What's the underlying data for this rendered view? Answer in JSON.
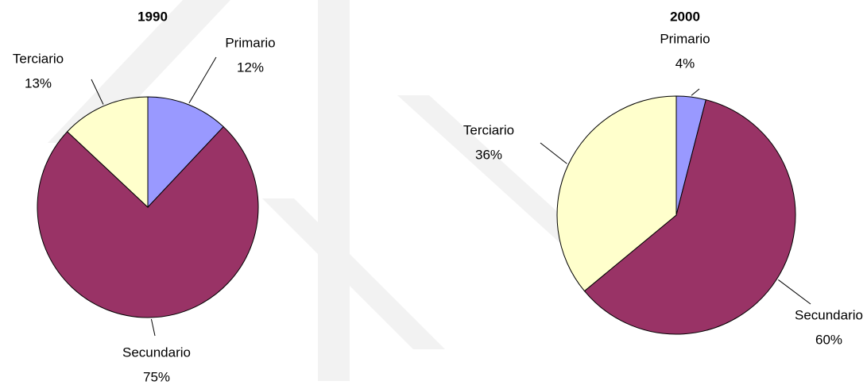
{
  "chart_data": [
    {
      "type": "pie",
      "title": "1990",
      "categories": [
        "Primario",
        "Secundario",
        "Terciario"
      ],
      "values": [
        12,
        75,
        13
      ],
      "value_labels": [
        "12%",
        "75%",
        "13%"
      ],
      "colors": [
        "#9999ff",
        "#993366",
        "#ffffcc"
      ]
    },
    {
      "type": "pie",
      "title": "2000",
      "categories": [
        "Primario",
        "Secundario",
        "Terciario"
      ],
      "values": [
        4,
        60,
        36
      ],
      "value_labels": [
        "4%",
        "60%",
        "36%"
      ],
      "colors": [
        "#9999ff",
        "#993366",
        "#ffffcc"
      ]
    }
  ]
}
